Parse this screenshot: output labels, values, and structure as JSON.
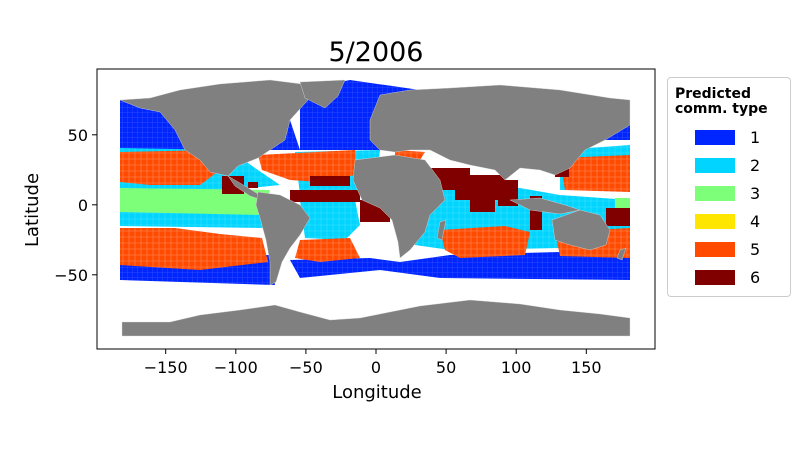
{
  "title": "5/2006",
  "axes": {
    "xlabel": "Longitude",
    "ylabel": "Latitude",
    "xticks": [
      {
        "value": -150,
        "label": "−150"
      },
      {
        "value": -100,
        "label": "−100"
      },
      {
        "value": -50,
        "label": "−50"
      },
      {
        "value": 0,
        "label": "0"
      },
      {
        "value": 50,
        "label": "50"
      },
      {
        "value": 100,
        "label": "100"
      },
      {
        "value": 150,
        "label": "150"
      }
    ],
    "yticks": [
      {
        "value": 50,
        "label": "50"
      },
      {
        "value": 0,
        "label": "0"
      },
      {
        "value": -50,
        "label": "−50"
      }
    ],
    "xlim": [
      -199,
      199
    ],
    "ylim": [
      -103,
      97
    ]
  },
  "legend": {
    "title_line1": "Predicted",
    "title_line2": "comm. type",
    "items": [
      {
        "label": "1",
        "color": "#0026ff"
      },
      {
        "label": "2",
        "color": "#00d4ff"
      },
      {
        "label": "3",
        "color": "#7dff7a"
      },
      {
        "label": "4",
        "color": "#ffe600"
      },
      {
        "label": "5",
        "color": "#ff4a00"
      },
      {
        "label": "6",
        "color": "#800000"
      }
    ]
  },
  "colors": {
    "land": "#808080",
    "coast": "#d9d9d9"
  }
}
